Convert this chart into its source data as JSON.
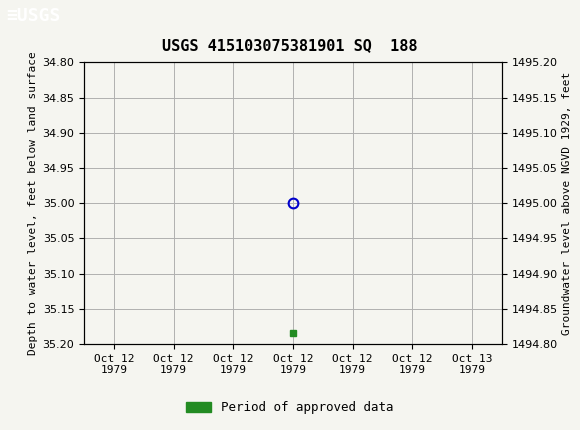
{
  "title": "USGS 415103075381901 SQ  188",
  "ylabel_left": "Depth to water level, feet below land surface",
  "ylabel_right": "Groundwater level above NGVD 1929, feet",
  "ylim_left_top": 34.8,
  "ylim_left_bottom": 35.2,
  "ylim_right_top": 1495.2,
  "ylim_right_bottom": 1494.8,
  "yticks_left": [
    34.8,
    34.85,
    34.9,
    34.95,
    35.0,
    35.05,
    35.1,
    35.15,
    35.2
  ],
  "yticks_right": [
    1494.8,
    1494.85,
    1494.9,
    1494.95,
    1495.0,
    1495.05,
    1495.1,
    1495.15,
    1495.2
  ],
  "data_point_x": 3,
  "data_point_y": 35.0,
  "data_point_color": "#0000cc",
  "green_square_x": 3,
  "green_square_y": 35.185,
  "green_color": "#228B22",
  "header_color": "#1a6b3c",
  "background_color": "#f5f5f0",
  "plot_bg_color": "#f5f5f0",
  "grid_color": "#b0b0b0",
  "font_family": "monospace",
  "legend_label": "Period of approved data",
  "xtick_labels": [
    "Oct 12\n1979",
    "Oct 12\n1979",
    "Oct 12\n1979",
    "Oct 12\n1979",
    "Oct 12\n1979",
    "Oct 12\n1979",
    "Oct 13\n1979"
  ],
  "xtick_positions": [
    0,
    1,
    2,
    3,
    4,
    5,
    6
  ],
  "xlim": [
    -0.5,
    6.5
  ],
  "title_fontsize": 11,
  "tick_fontsize": 8,
  "label_fontsize": 8
}
